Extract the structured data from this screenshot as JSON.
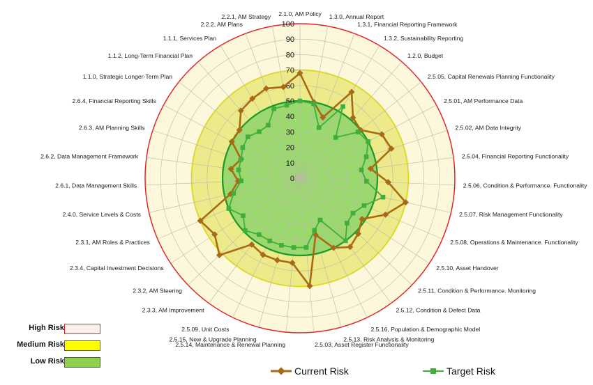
{
  "chart_data": {
    "type": "radar",
    "rmax": 100,
    "ticks": [
      0,
      10,
      20,
      30,
      40,
      50,
      60,
      70,
      80,
      90,
      100
    ],
    "categories": [
      "2.1.0, AM Policy",
      "1.3.0, Annual Report",
      "1.3.1, Financial Reporting Framework",
      "1.3.2, Sustainability Reporting",
      "1.2.0, Budget",
      "2.5.05, Capital Renewals Planning Functionality",
      "2.5.01, AM Performance Data",
      "2.5.02, AM Data Integrity",
      "2.5.04, Financial Reporting Functionality",
      "2.5.06, Condition & Performance. Functionality",
      "2.5.07, Risk Management Functionality",
      "2.5.08, Operations & Maintenance. Functionality",
      "2.5.10, Asset Handover",
      "2.5.11, Condition & Performance. Monitoring",
      "2.5.12, Condition & Defect Data",
      "2.5.16, Population & Demographic Model",
      "2.5.13, Risk Analysis & Monitoring",
      "2.5.03, Asset Register Functionality",
      "2.5.14, Maintenance & Renewal Planning",
      "2.5.15, New & Upgrade Planning",
      "2.5.09, Unit Costs",
      "2.3.3, AM Improvement",
      "2.3.2, AM Steering",
      "2.3.4, Capital Investment Decisions",
      "2.3.1, AM Roles & Practices",
      "2.4.0, Service Levels & Costs",
      "2.6.1, Data Management Skills",
      "2.6.2, Data Management Framework",
      "2.6.3, AM Planning Skills",
      "2.6.4, Financial Reporting Skills",
      "1.1.0, Strategic Longer-Term Plan",
      "1.1.2, Long-Term Financial Plan",
      "1.1.1, Services Plan",
      "2.2.2, AM Plans",
      "2.2.1, AM Strategy"
    ],
    "series": [
      {
        "name": "Current Risk",
        "color": "#a86a14",
        "values": [
          68,
          50,
          42,
          65,
          52,
          50,
          60,
          62,
          46,
          57,
          70,
          60,
          48,
          52,
          55,
          50,
          38,
          70,
          55,
          55,
          55,
          53,
          72,
          66,
          70,
          46,
          40,
          45,
          40,
          50,
          50,
          58,
          60,
          62,
          60
        ]
      },
      {
        "name": "Target Risk",
        "color": "#3fae3a",
        "values": [
          50,
          49,
          35,
          54,
          35,
          48,
          50,
          45,
          40,
          43,
          55,
          45,
          41,
          42,
          50,
          30,
          35,
          45,
          45,
          45,
          45,
          45,
          49,
          44,
          50,
          44,
          38,
          40,
          40,
          42,
          43,
          40,
          40,
          48,
          48
        ]
      }
    ],
    "zones": [
      {
        "name": "High Risk",
        "from": 70,
        "to": 100,
        "fill": "#fdf7dc",
        "stroke": "#d92b2b"
      },
      {
        "name": "Medium Risk",
        "from": 50,
        "to": 70,
        "fill": "#ecea8a",
        "stroke": "#ece813"
      },
      {
        "name": "Low Risk",
        "from": 0,
        "to": 50,
        "fill": "#9bd86e",
        "stroke": "#1f9a2a"
      }
    ],
    "legend": {
      "zones": [
        {
          "label": "High Risk",
          "color": "#fdeee8",
          "border": "#d92b2b"
        },
        {
          "label": "Medium Risk",
          "color": "#ffff00",
          "border": "#444444"
        },
        {
          "label": "Low Risk",
          "color": "#8fd14f",
          "border": "#444444"
        }
      ],
      "series_position": "bottom"
    }
  }
}
